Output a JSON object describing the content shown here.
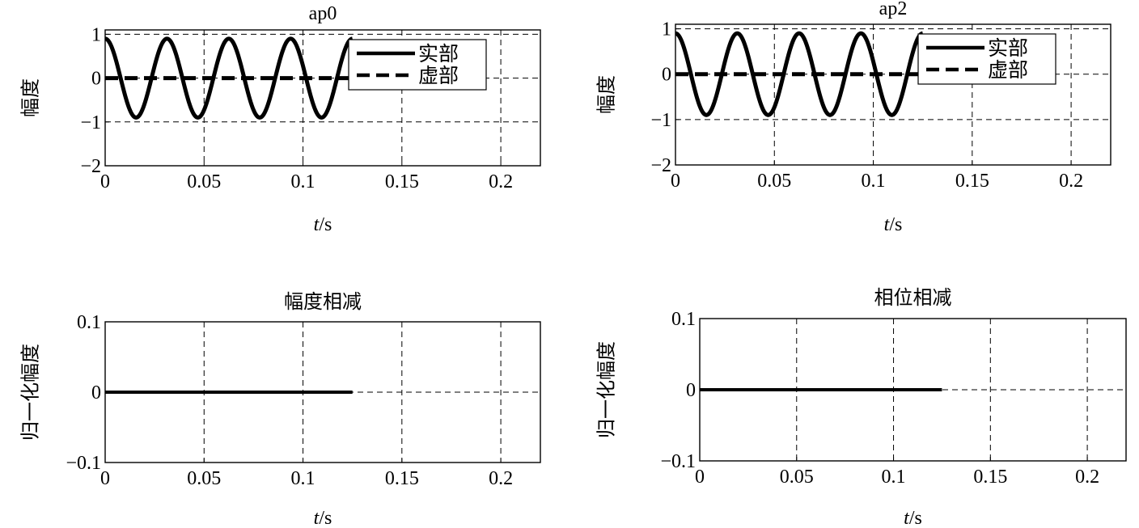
{
  "chart_data": [
    {
      "type": "line",
      "title": "ap0",
      "xlabel_italic": "t",
      "xlabel_rest": "/s",
      "ylabel": "幅度",
      "xlim": [
        0,
        0.22
      ],
      "ylim": [
        -2,
        1.1
      ],
      "xticks": [
        0,
        0.05,
        0.1,
        0.15,
        0.2
      ],
      "xtick_labels": [
        "0",
        "0.05",
        "0.1",
        "0.15",
        "0.2"
      ],
      "yticks": [
        -2,
        -1,
        0,
        1
      ],
      "ytick_labels": [
        "−2",
        "−1",
        "0",
        "1"
      ],
      "grid": true,
      "legend_position": "top-right",
      "series": [
        {
          "name": "实部",
          "style": "solid",
          "function": "cos",
          "amplitude": 0.9,
          "frequency_hz": 32,
          "x_start": 0,
          "x_end": 0.125
        },
        {
          "name": "虚部",
          "style": "dashed",
          "function": "zero",
          "x_start": 0,
          "x_end": 0.125
        }
      ]
    },
    {
      "type": "line",
      "title": "ap2",
      "xlabel_italic": "t",
      "xlabel_rest": "/s",
      "ylabel": "幅度",
      "xlim": [
        0,
        0.22
      ],
      "ylim": [
        -2,
        1.1
      ],
      "xticks": [
        0,
        0.05,
        0.1,
        0.15,
        0.2
      ],
      "xtick_labels": [
        "0",
        "0.05",
        "0.1",
        "0.15",
        "0.2"
      ],
      "yticks": [
        -2,
        -1,
        0,
        1
      ],
      "ytick_labels": [
        "−2",
        "−1",
        "0",
        "1"
      ],
      "grid": true,
      "legend_position": "top-right",
      "series": [
        {
          "name": "实部",
          "style": "solid",
          "function": "cos",
          "amplitude": 0.9,
          "frequency_hz": 32,
          "x_start": 0,
          "x_end": 0.125
        },
        {
          "name": "虚部",
          "style": "dashed",
          "function": "zero",
          "x_start": 0,
          "x_end": 0.125
        }
      ]
    },
    {
      "type": "line",
      "title": "幅度相减",
      "xlabel_italic": "t",
      "xlabel_rest": "/s",
      "ylabel": "归一化幅度",
      "xlim": [
        0,
        0.22
      ],
      "ylim": [
        -0.1,
        0.1
      ],
      "xticks": [
        0,
        0.05,
        0.1,
        0.15,
        0.2
      ],
      "xtick_labels": [
        "0",
        "0.05",
        "0.1",
        "0.15",
        "0.2"
      ],
      "yticks": [
        -0.1,
        0,
        0.1
      ],
      "ytick_labels": [
        "−0.1",
        "0",
        "0.1"
      ],
      "grid": true,
      "series": [
        {
          "style": "solid",
          "function": "zero",
          "x_start": 0,
          "x_end": 0.125
        }
      ]
    },
    {
      "type": "line",
      "title": "相位相减",
      "xlabel_italic": "t",
      "xlabel_rest": "/s",
      "ylabel": "归一化幅度",
      "xlim": [
        0,
        0.22
      ],
      "ylim": [
        -0.1,
        0.1
      ],
      "xticks": [
        0,
        0.05,
        0.1,
        0.15,
        0.2
      ],
      "xtick_labels": [
        "0",
        "0.05",
        "0.1",
        "0.15",
        "0.2"
      ],
      "yticks": [
        -0.1,
        0,
        0.1
      ],
      "ytick_labels": [
        "−0.1",
        "0",
        "0.1"
      ],
      "grid": true,
      "series": [
        {
          "style": "solid",
          "function": "zero",
          "x_start": 0,
          "x_end": 0.125
        }
      ]
    }
  ]
}
